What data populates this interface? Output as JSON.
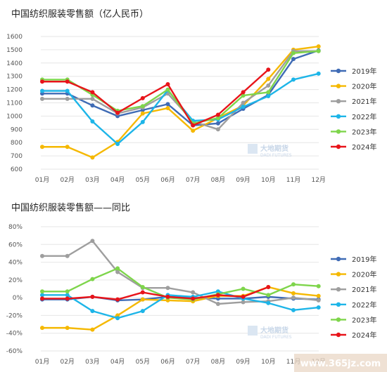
{
  "chart_data": [
    {
      "type": "line",
      "title": "中国纺织服装零售额（亿人民币）",
      "categories": [
        "01月",
        "02月",
        "03月",
        "04月",
        "05月",
        "06月",
        "07月",
        "08月",
        "09月",
        "10月",
        "11月",
        "12月"
      ],
      "ylim": [
        600,
        1600
      ],
      "yticks": [
        "600",
        "700",
        "800",
        "900",
        "1000",
        "1100",
        "1200",
        "1300",
        "1400",
        "1500",
        "1600"
      ],
      "legend_position": "right",
      "grid": true,
      "series": [
        {
          "name": "2019年",
          "color": "#3f6bb5",
          "values": [
            1170,
            1170,
            1080,
            1000,
            1045,
            1090,
            930,
            945,
            1055,
            1160,
            1430,
            1495
          ]
        },
        {
          "name": "2020年",
          "color": "#f5b800",
          "values": [
            768,
            768,
            688,
            805,
            1020,
            1060,
            890,
            985,
            1080,
            1280,
            1500,
            1525
          ]
        },
        {
          "name": "2021年",
          "color": "#9e9e9e",
          "values": [
            1130,
            1130,
            1130,
            1020,
            1065,
            1170,
            960,
            900,
            1100,
            1230,
            1490,
            1490
          ]
        },
        {
          "name": "2022年",
          "color": "#1db5e8",
          "values": [
            1190,
            1190,
            960,
            790,
            955,
            1195,
            965,
            975,
            1070,
            1150,
            1275,
            1320
          ]
        },
        {
          "name": "2023年",
          "color": "#7ed54b",
          "values": [
            1275,
            1275,
            1160,
            1040,
            1075,
            1200,
            945,
            985,
            1155,
            1180,
            1475,
            1490
          ]
        },
        {
          "name": "2024年",
          "color": "#e8141a",
          "values": [
            1260,
            1260,
            1180,
            1025,
            1135,
            1240,
            930,
            1010,
            1180,
            1350,
            null,
            null
          ]
        }
      ]
    },
    {
      "type": "line",
      "title": "中国纺织服装零售额——同比",
      "categories": [
        "01月",
        "02月",
        "03月",
        "04月",
        "05月",
        "06月",
        "07月",
        "08月",
        "09月",
        "10月",
        "11月",
        "12月"
      ],
      "ylim": [
        -60,
        80
      ],
      "yticks": [
        "-60%",
        "-40%",
        "-20%",
        "0%",
        "20%",
        "40%",
        "60%",
        "80%"
      ],
      "legend_position": "right",
      "grid": true,
      "series": [
        {
          "name": "2019年",
          "color": "#3f6bb5",
          "values": [
            -2,
            -2,
            1,
            -3,
            -2,
            1,
            0,
            -1,
            -1,
            1,
            -1,
            -2
          ]
        },
        {
          "name": "2020年",
          "color": "#f5b800",
          "values": [
            -34,
            -34,
            -36,
            -20,
            -2,
            -3,
            -4,
            2,
            2,
            12,
            5,
            2
          ]
        },
        {
          "name": "2021年",
          "color": "#9e9e9e",
          "values": [
            47,
            47,
            64,
            29,
            11,
            11,
            6,
            -7,
            -5,
            -4,
            0,
            -3
          ]
        },
        {
          "name": "2022年",
          "color": "#1db5e8",
          "values": [
            3,
            3,
            -15,
            -23,
            -15,
            3,
            1,
            7,
            -1,
            -6,
            -14,
            -11
          ]
        },
        {
          "name": "2023年",
          "color": "#7ed54b",
          "values": [
            7,
            7,
            21,
            33,
            12,
            0,
            -2,
            4,
            10,
            3,
            15,
            13
          ]
        },
        {
          "name": "2024年",
          "color": "#e8141a",
          "values": [
            -1,
            -1,
            1,
            -2,
            6,
            1,
            -1,
            3,
            1,
            12,
            null,
            null
          ]
        }
      ]
    }
  ],
  "watermark": {
    "brand": "大地期货",
    "sub": "DADI FUTURES"
  },
  "site_watermark": "www.365jz.com"
}
